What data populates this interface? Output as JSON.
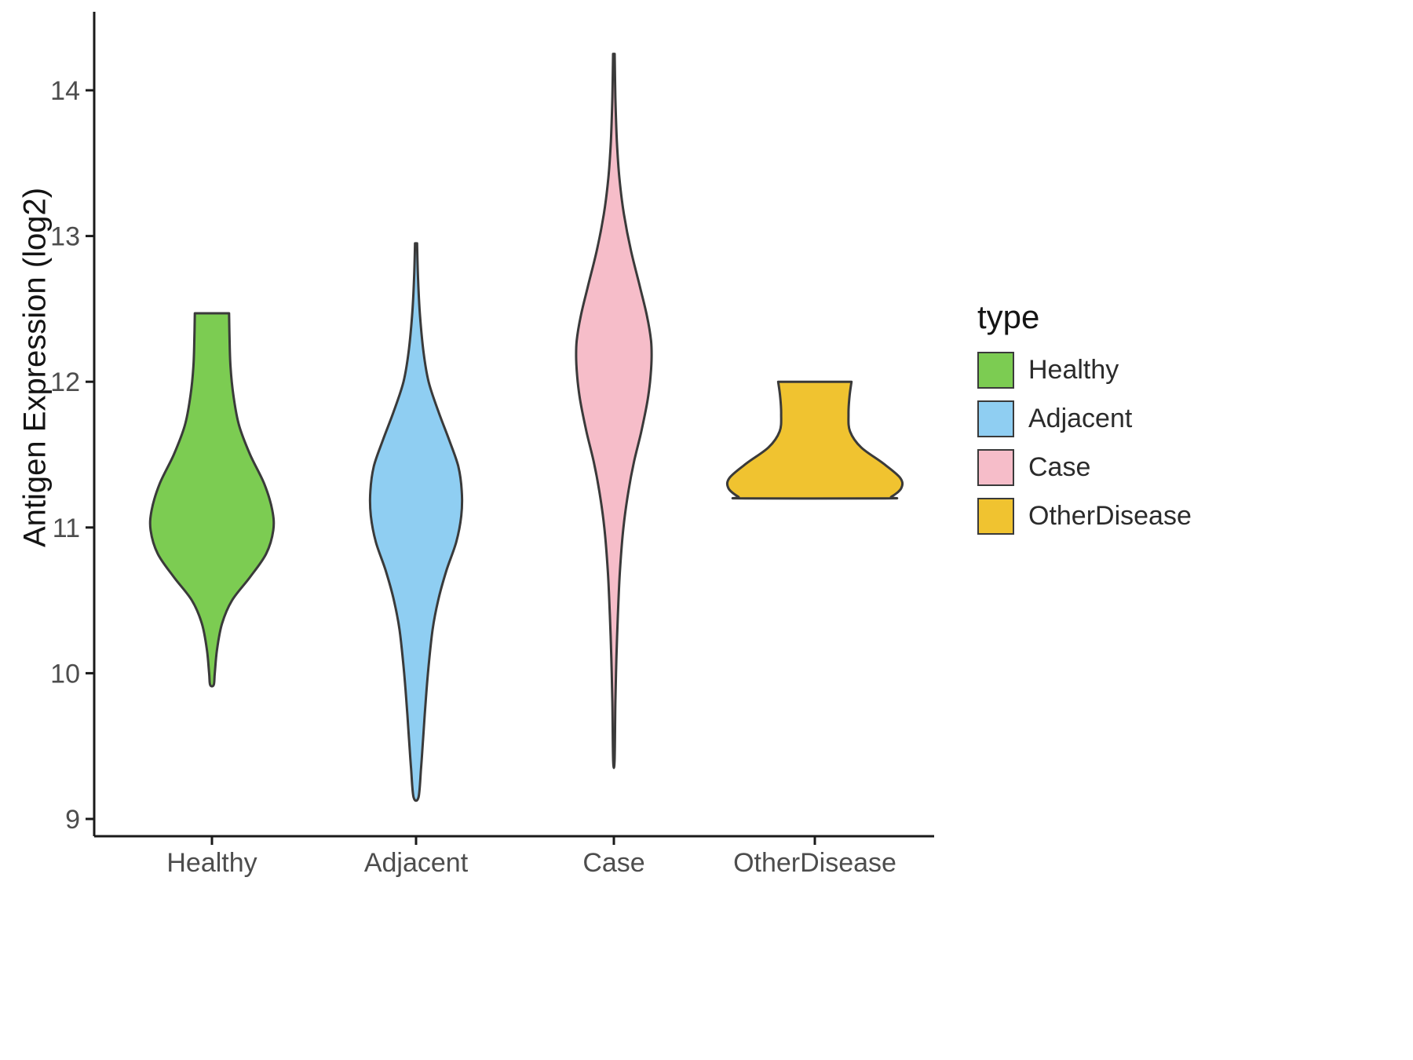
{
  "chart_data": {
    "type": "violin",
    "title": "",
    "xlabel": "",
    "ylabel": "Antigen Expression (log2)",
    "ylim": [
      8.9,
      14.5
    ],
    "y_ticks": [
      9,
      10,
      11,
      12,
      13,
      14
    ],
    "categories": [
      "Healthy",
      "Adjacent",
      "Case",
      "OtherDisease"
    ],
    "grid": false,
    "legend": {
      "title": "type",
      "position": "right"
    },
    "style": {
      "outline": "#3A3A3A",
      "axis_color": "#1A1A1A",
      "tick_label_color": "#4D4D4D",
      "background": "#FFFFFF"
    },
    "series": [
      {
        "name": "Healthy",
        "color": "#7CCC52",
        "y_min": 9.92,
        "y_max": 12.47,
        "peak_y": 11.05,
        "profile": [
          [
            12.47,
            0.17
          ],
          [
            12.3,
            0.175
          ],
          [
            12.1,
            0.185
          ],
          [
            11.9,
            0.215
          ],
          [
            11.7,
            0.27
          ],
          [
            11.5,
            0.38
          ],
          [
            11.3,
            0.52
          ],
          [
            11.12,
            0.6
          ],
          [
            10.98,
            0.61
          ],
          [
            10.82,
            0.54
          ],
          [
            10.66,
            0.38
          ],
          [
            10.5,
            0.2
          ],
          [
            10.34,
            0.1
          ],
          [
            10.16,
            0.05
          ],
          [
            10.0,
            0.028
          ],
          [
            9.92,
            0.018
          ]
        ]
      },
      {
        "name": "Adjacent",
        "color": "#8FCEF2",
        "y_min": 9.15,
        "y_max": 12.95,
        "peak_y": 11.2,
        "profile": [
          [
            12.95,
            0.01
          ],
          [
            12.7,
            0.02
          ],
          [
            12.45,
            0.04
          ],
          [
            12.2,
            0.075
          ],
          [
            12.0,
            0.125
          ],
          [
            11.8,
            0.22
          ],
          [
            11.6,
            0.33
          ],
          [
            11.42,
            0.42
          ],
          [
            11.25,
            0.455
          ],
          [
            11.08,
            0.45
          ],
          [
            10.9,
            0.4
          ],
          [
            10.7,
            0.3
          ],
          [
            10.5,
            0.22
          ],
          [
            10.3,
            0.165
          ],
          [
            10.05,
            0.125
          ],
          [
            9.8,
            0.095
          ],
          [
            9.55,
            0.07
          ],
          [
            9.35,
            0.05
          ],
          [
            9.15,
            0.025
          ]
        ]
      },
      {
        "name": "Case",
        "color": "#F6BDC9",
        "y_min": 9.4,
        "y_max": 14.25,
        "peak_y": 12.2,
        "profile": [
          [
            14.25,
            0.008
          ],
          [
            13.95,
            0.015
          ],
          [
            13.65,
            0.03
          ],
          [
            13.4,
            0.055
          ],
          [
            13.15,
            0.1
          ],
          [
            12.9,
            0.17
          ],
          [
            12.65,
            0.26
          ],
          [
            12.45,
            0.33
          ],
          [
            12.28,
            0.37
          ],
          [
            12.15,
            0.375
          ],
          [
            12.0,
            0.36
          ],
          [
            11.85,
            0.33
          ],
          [
            11.65,
            0.27
          ],
          [
            11.45,
            0.2
          ],
          [
            11.25,
            0.145
          ],
          [
            11.0,
            0.095
          ],
          [
            10.7,
            0.06
          ],
          [
            10.4,
            0.04
          ],
          [
            10.1,
            0.025
          ],
          [
            9.8,
            0.015
          ],
          [
            9.4,
            0.007
          ]
        ]
      },
      {
        "name": "OtherDisease",
        "color": "#F0C330",
        "y_min": 11.2,
        "y_max": 12.0,
        "peak_y": 11.3,
        "profile": [
          [
            12.0,
            0.365
          ],
          [
            11.9,
            0.345
          ],
          [
            11.78,
            0.335
          ],
          [
            11.66,
            0.35
          ],
          [
            11.55,
            0.46
          ],
          [
            11.44,
            0.68
          ],
          [
            11.34,
            0.85
          ],
          [
            11.27,
            0.86
          ],
          [
            11.21,
            0.76
          ],
          [
            11.2,
            0.7
          ]
        ]
      }
    ]
  }
}
